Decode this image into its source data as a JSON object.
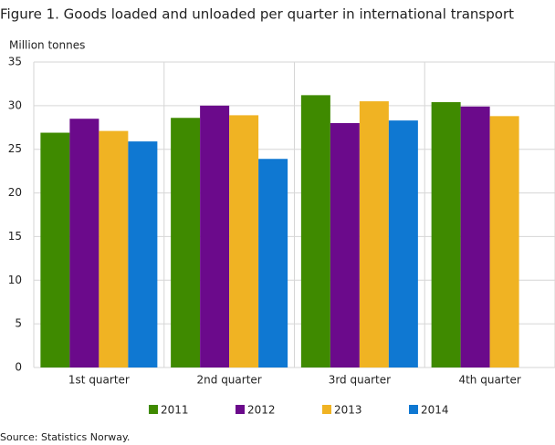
{
  "chart_data": {
    "type": "bar",
    "title": "Figure 1. Goods loaded and unloaded per quarter in international transport",
    "y_label": "Million tonnes",
    "categories": [
      "1st quarter",
      "2nd quarter",
      "3rd quarter",
      "4th quarter"
    ],
    "series": [
      {
        "name": "2011",
        "color": "#3f8a00",
        "values": [
          26.9,
          28.6,
          31.2,
          30.4
        ]
      },
      {
        "name": "2012",
        "color": "#6b0a8b",
        "values": [
          28.5,
          30.0,
          28.0,
          29.9
        ]
      },
      {
        "name": "2013",
        "color": "#f0b323",
        "values": [
          27.1,
          28.9,
          30.5,
          28.8
        ]
      },
      {
        "name": "2014",
        "color": "#0f78d2",
        "values": [
          25.9,
          23.9,
          28.3,
          null
        ]
      }
    ],
    "ylim": [
      0,
      35
    ],
    "yticks": [
      0,
      5,
      10,
      15,
      20,
      25,
      30,
      35
    ],
    "grid": true,
    "source": "Source: Statistics Norway."
  }
}
